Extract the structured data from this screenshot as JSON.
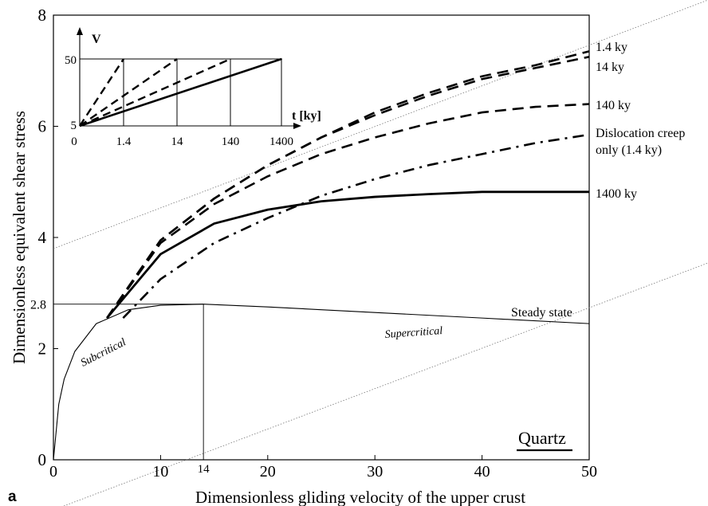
{
  "panel_label": "a",
  "chart_data": [
    {
      "type": "line",
      "xlabel": "Dimensionless gliding velocity of the upper crust",
      "ylabel": "Dimensionless equivalent shear stress",
      "xlim": [
        0,
        50
      ],
      "ylim": [
        0,
        8
      ],
      "x_ticks": [
        "0",
        "10",
        "20",
        "30",
        "40",
        "50"
      ],
      "y_ticks": [
        "0",
        "2",
        "4",
        "6",
        "8"
      ],
      "extra_ticks": {
        "x": "14",
        "y": "2.8"
      },
      "grid": false,
      "label_material": "Quartz",
      "region_labels": [
        "Subcritical",
        "Supercritical"
      ],
      "series": [
        {
          "name": "1.4 ky",
          "style": "dashed",
          "points": [
            [
              5,
              2.55
            ],
            [
              10,
              3.95
            ],
            [
              15,
              4.7
            ],
            [
              20,
              5.3
            ],
            [
              25,
              5.8
            ],
            [
              30,
              6.25
            ],
            [
              35,
              6.6
            ],
            [
              40,
              6.9
            ],
            [
              45,
              7.1
            ],
            [
              50,
              7.35
            ]
          ]
        },
        {
          "name": "14 ky",
          "style": "dashed",
          "points": [
            [
              5,
              2.55
            ],
            [
              10,
              3.95
            ],
            [
              15,
              4.7
            ],
            [
              20,
              5.3
            ],
            [
              25,
              5.8
            ],
            [
              30,
              6.2
            ],
            [
              35,
              6.55
            ],
            [
              40,
              6.85
            ],
            [
              45,
              7.05
            ],
            [
              50,
              7.25
            ]
          ]
        },
        {
          "name": "140 ky",
          "style": "dashed",
          "points": [
            [
              5,
              2.55
            ],
            [
              10,
              3.9
            ],
            [
              15,
              4.6
            ],
            [
              20,
              5.1
            ],
            [
              25,
              5.5
            ],
            [
              30,
              5.8
            ],
            [
              35,
              6.05
            ],
            [
              40,
              6.25
            ],
            [
              45,
              6.35
            ],
            [
              50,
              6.4
            ]
          ]
        },
        {
          "name": "Dislocation creep only (1.4 ky)",
          "style": "dashdot",
          "points": [
            [
              6.5,
              2.55
            ],
            [
              10,
              3.25
            ],
            [
              15,
              3.9
            ],
            [
              20,
              4.35
            ],
            [
              25,
              4.75
            ],
            [
              30,
              5.05
            ],
            [
              35,
              5.3
            ],
            [
              40,
              5.5
            ],
            [
              45,
              5.7
            ],
            [
              50,
              5.85
            ]
          ]
        },
        {
          "name": "1400 ky",
          "style": "solid",
          "points": [
            [
              5,
              2.55
            ],
            [
              10,
              3.7
            ],
            [
              15,
              4.25
            ],
            [
              20,
              4.5
            ],
            [
              25,
              4.65
            ],
            [
              30,
              4.73
            ],
            [
              35,
              4.78
            ],
            [
              40,
              4.82
            ],
            [
              45,
              4.82
            ],
            [
              50,
              4.82
            ]
          ]
        },
        {
          "name": "Steady state",
          "style": "thin",
          "points": [
            [
              0,
              0
            ],
            [
              0.5,
              1
            ],
            [
              1,
              1.45
            ],
            [
              2,
              1.95
            ],
            [
              4,
              2.45
            ],
            [
              7,
              2.7
            ],
            [
              10,
              2.78
            ],
            [
              14,
              2.8
            ],
            [
              20,
              2.75
            ],
            [
              30,
              2.65
            ],
            [
              40,
              2.55
            ],
            [
              50,
              2.45
            ]
          ]
        }
      ]
    },
    {
      "type": "line",
      "xlabel": "t [ky]",
      "ylabel": "V",
      "x_ticks": [
        "0",
        "1.4",
        "14",
        "140",
        "1400"
      ],
      "y_ticks": [
        "5",
        "50"
      ],
      "series_styles": [
        "dashed",
        "dashed",
        "dashed",
        "solid"
      ],
      "ramp_end_ticks": [
        "1.4",
        "14",
        "140",
        "1400"
      ]
    }
  ]
}
